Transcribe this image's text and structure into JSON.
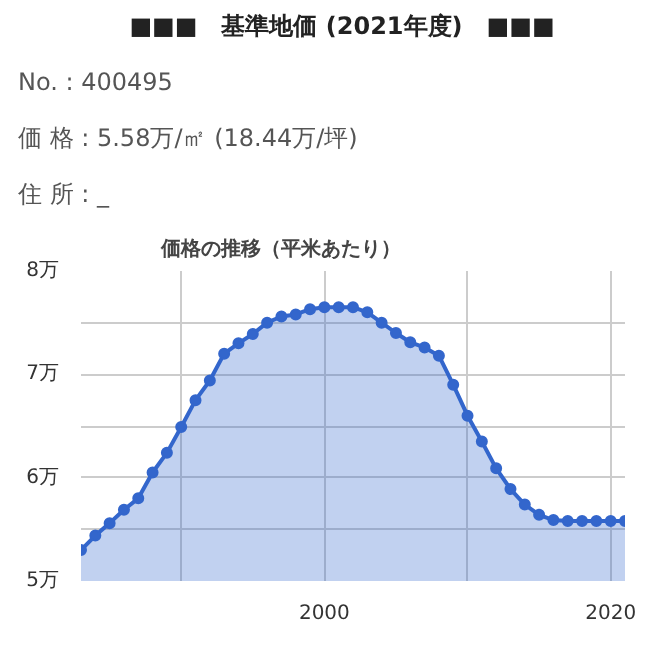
{
  "chart_data": {
    "type": "area",
    "title": "■■■　基準地価 (2021年度)　■■■",
    "annotations": [
      "No. : 400495",
      "価 格 : 5.58万/㎡ (18.44万/坪)",
      "住 所 : _"
    ],
    "subtitle": "価格の推移（平米あたり）",
    "x": [
      1983,
      1984,
      1985,
      1986,
      1987,
      1988,
      1989,
      1990,
      1991,
      1992,
      1993,
      1994,
      1995,
      1996,
      1997,
      1998,
      1999,
      2000,
      2001,
      2002,
      2003,
      2004,
      2005,
      2006,
      2007,
      2008,
      2009,
      2010,
      2011,
      2012,
      2013,
      2014,
      2015,
      2016,
      2017,
      2018,
      2019,
      2020,
      2021
    ],
    "series": [
      {
        "color": "#3366cc",
        "values": [
          5.3,
          5.44,
          5.56,
          5.69,
          5.8,
          6.05,
          6.24,
          6.49,
          6.75,
          6.94,
          7.2,
          7.3,
          7.39,
          7.5,
          7.56,
          7.58,
          7.63,
          7.65,
          7.65,
          7.65,
          7.6,
          7.5,
          7.4,
          7.31,
          7.26,
          7.18,
          6.9,
          6.6,
          6.35,
          6.09,
          5.89,
          5.74,
          5.64,
          5.59,
          5.58,
          5.58,
          5.58,
          5.58,
          5.58
        ]
      }
    ],
    "xlim": [
      1983,
      2021
    ],
    "ylim": [
      5,
      8
    ],
    "xticks": [
      {
        "value": 1990,
        "label": null
      },
      2000,
      {
        "value": 2010,
        "label": null
      },
      2020
    ],
    "yticks": [
      {
        "value": 5,
        "label": "5万"
      },
      {
        "value": 5.5,
        "label": null
      },
      {
        "value": 6,
        "label": "6万"
      },
      {
        "value": 6.5,
        "label": null
      },
      {
        "value": 7,
        "label": "7万"
      },
      {
        "value": 7.5,
        "label": null
      },
      {
        "value": 8,
        "label": "8万"
      }
    ],
    "grid": true,
    "marker": "circle",
    "line_style": "solid"
  }
}
